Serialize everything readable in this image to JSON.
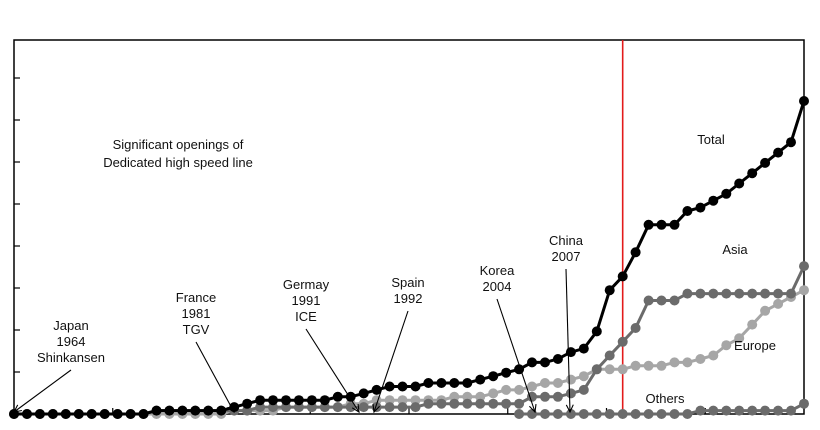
{
  "chart_data": {
    "type": "line",
    "title": "",
    "xlabel": "",
    "ylabel": "",
    "grid": false,
    "x_range": [
      1964,
      2025
    ],
    "y_range": [
      0,
      100
    ],
    "marker_year": 2011,
    "annotation_box": {
      "line1": "Significant openings of",
      "line2": "Dedicated high speed line"
    },
    "annotations": [
      {
        "line1": "Japan",
        "line2": "1964",
        "line3": "Shinkansen",
        "year": 1964
      },
      {
        "line1": "France",
        "line2": "1981",
        "line3": "TGV",
        "year": 1981
      },
      {
        "line1": "Germay",
        "line2": "1991",
        "line3": "ICE",
        "year": 1991
      },
      {
        "line1": "Spain",
        "line2": "1992",
        "line3": "",
        "year": 1992
      },
      {
        "line1": "Korea",
        "line2": "2004",
        "line3": "",
        "year": 2004
      },
      {
        "line1": "China",
        "line2": "2007",
        "line3": "",
        "year": 2007
      }
    ],
    "series": [
      {
        "name": "Total",
        "color": "#000000",
        "points": [
          [
            1964,
            0
          ],
          [
            1965,
            0
          ],
          [
            1966,
            0
          ],
          [
            1967,
            0
          ],
          [
            1968,
            0
          ],
          [
            1969,
            0
          ],
          [
            1970,
            0
          ],
          [
            1971,
            0
          ],
          [
            1972,
            0
          ],
          [
            1973,
            0
          ],
          [
            1974,
            0
          ],
          [
            1975,
            1
          ],
          [
            1976,
            1
          ],
          [
            1977,
            1
          ],
          [
            1978,
            1
          ],
          [
            1979,
            1
          ],
          [
            1980,
            1
          ],
          [
            1981,
            2
          ],
          [
            1982,
            3
          ],
          [
            1983,
            4
          ],
          [
            1984,
            4
          ],
          [
            1985,
            4
          ],
          [
            1986,
            4
          ],
          [
            1987,
            4
          ],
          [
            1988,
            4
          ],
          [
            1989,
            5
          ],
          [
            1990,
            5
          ],
          [
            1991,
            6
          ],
          [
            1992,
            7
          ],
          [
            1993,
            8
          ],
          [
            1994,
            8
          ],
          [
            1995,
            8
          ],
          [
            1996,
            9
          ],
          [
            1997,
            9
          ],
          [
            1998,
            9
          ],
          [
            1999,
            9
          ],
          [
            2000,
            10
          ],
          [
            2001,
            11
          ],
          [
            2002,
            12
          ],
          [
            2003,
            13
          ],
          [
            2004,
            15
          ],
          [
            2005,
            15
          ],
          [
            2006,
            16
          ],
          [
            2007,
            18
          ],
          [
            2008,
            19
          ],
          [
            2009,
            24
          ],
          [
            2010,
            36
          ],
          [
            2011,
            40
          ],
          [
            2012,
            47
          ],
          [
            2013,
            55
          ],
          [
            2014,
            55
          ],
          [
            2015,
            55
          ],
          [
            2016,
            59
          ],
          [
            2017,
            60
          ],
          [
            2018,
            62
          ],
          [
            2019,
            64
          ],
          [
            2020,
            67
          ],
          [
            2021,
            70
          ],
          [
            2022,
            73
          ],
          [
            2023,
            76
          ],
          [
            2024,
            79
          ],
          [
            2025,
            91
          ]
        ]
      },
      {
        "name": "Asia",
        "color": "#6b6b6b",
        "points": [
          [
            1964,
            0
          ],
          [
            1965,
            0
          ],
          [
            1966,
            0
          ],
          [
            1967,
            0
          ],
          [
            1968,
            0
          ],
          [
            1969,
            0
          ],
          [
            1970,
            0
          ],
          [
            1971,
            0
          ],
          [
            1972,
            0
          ],
          [
            1973,
            0
          ],
          [
            1974,
            0
          ],
          [
            1975,
            1
          ],
          [
            1976,
            1
          ],
          [
            1977,
            1
          ],
          [
            1978,
            1
          ],
          [
            1979,
            1
          ],
          [
            1980,
            1
          ],
          [
            1981,
            1
          ],
          [
            1982,
            1
          ],
          [
            1983,
            2
          ],
          [
            1984,
            2
          ],
          [
            1985,
            2
          ],
          [
            1986,
            2
          ],
          [
            1987,
            2
          ],
          [
            1988,
            2
          ],
          [
            1989,
            2
          ],
          [
            1990,
            2
          ],
          [
            1991,
            2
          ],
          [
            1992,
            2
          ],
          [
            1993,
            2
          ],
          [
            1994,
            2
          ],
          [
            1995,
            2
          ],
          [
            1996,
            3
          ],
          [
            1997,
            3
          ],
          [
            1998,
            3
          ],
          [
            1999,
            3
          ],
          [
            2000,
            3
          ],
          [
            2001,
            3
          ],
          [
            2002,
            3
          ],
          [
            2003,
            3
          ],
          [
            2004,
            5
          ],
          [
            2005,
            5
          ],
          [
            2006,
            5
          ],
          [
            2007,
            6
          ],
          [
            2008,
            7
          ],
          [
            2009,
            13
          ],
          [
            2010,
            17
          ],
          [
            2011,
            21
          ],
          [
            2012,
            25
          ],
          [
            2013,
            33
          ],
          [
            2014,
            33
          ],
          [
            2015,
            33
          ],
          [
            2016,
            35
          ],
          [
            2017,
            35
          ],
          [
            2018,
            35
          ],
          [
            2019,
            35
          ],
          [
            2020,
            35
          ],
          [
            2021,
            35
          ],
          [
            2022,
            35
          ],
          [
            2023,
            35
          ],
          [
            2024,
            35
          ],
          [
            2025,
            43
          ]
        ]
      },
      {
        "name": "Europe",
        "color": "#a6a6a6",
        "points": [
          [
            1964,
            0
          ],
          [
            1965,
            0
          ],
          [
            1966,
            0
          ],
          [
            1967,
            0
          ],
          [
            1968,
            0
          ],
          [
            1969,
            0
          ],
          [
            1970,
            0
          ],
          [
            1971,
            0
          ],
          [
            1972,
            0
          ],
          [
            1973,
            0
          ],
          [
            1974,
            0
          ],
          [
            1975,
            0
          ],
          [
            1976,
            0
          ],
          [
            1977,
            0
          ],
          [
            1978,
            0
          ],
          [
            1979,
            0
          ],
          [
            1980,
            0
          ],
          [
            1981,
            1
          ],
          [
            1982,
            1
          ],
          [
            1983,
            1
          ],
          [
            1984,
            1
          ],
          [
            1985,
            2
          ],
          [
            1986,
            2
          ],
          [
            1987,
            2
          ],
          [
            1988,
            2
          ],
          [
            1989,
            2
          ],
          [
            1990,
            3
          ],
          [
            1991,
            3
          ],
          [
            1992,
            4
          ],
          [
            1993,
            4
          ],
          [
            1994,
            4
          ],
          [
            1995,
            4
          ],
          [
            1996,
            4
          ],
          [
            1997,
            4
          ],
          [
            1998,
            5
          ],
          [
            1999,
            5
          ],
          [
            2000,
            5
          ],
          [
            2001,
            6
          ],
          [
            2002,
            7
          ],
          [
            2003,
            7
          ],
          [
            2004,
            8
          ],
          [
            2005,
            9
          ],
          [
            2006,
            9
          ],
          [
            2007,
            10
          ],
          [
            2008,
            11
          ],
          [
            2009,
            13
          ],
          [
            2010,
            13
          ],
          [
            2011,
            13
          ],
          [
            2012,
            14
          ],
          [
            2013,
            14
          ],
          [
            2014,
            14
          ],
          [
            2015,
            15
          ],
          [
            2016,
            15
          ],
          [
            2017,
            16
          ],
          [
            2018,
            17
          ],
          [
            2019,
            20
          ],
          [
            2020,
            22
          ],
          [
            2021,
            26
          ],
          [
            2022,
            30
          ],
          [
            2023,
            32
          ],
          [
            2024,
            34
          ],
          [
            2025,
            36
          ]
        ]
      },
      {
        "name": "Others",
        "color": "#6b6b6b",
        "points": [
          [
            2003,
            0
          ],
          [
            2004,
            0
          ],
          [
            2005,
            0
          ],
          [
            2006,
            0
          ],
          [
            2007,
            0
          ],
          [
            2008,
            0
          ],
          [
            2009,
            0
          ],
          [
            2010,
            0
          ],
          [
            2011,
            0
          ],
          [
            2012,
            0
          ],
          [
            2013,
            0
          ],
          [
            2014,
            0
          ],
          [
            2015,
            0
          ],
          [
            2016,
            0
          ],
          [
            2017,
            1
          ],
          [
            2018,
            1
          ],
          [
            2019,
            1
          ],
          [
            2020,
            1
          ],
          [
            2021,
            1
          ],
          [
            2022,
            1
          ],
          [
            2023,
            1
          ],
          [
            2024,
            1
          ],
          [
            2025,
            3
          ]
        ]
      }
    ]
  }
}
